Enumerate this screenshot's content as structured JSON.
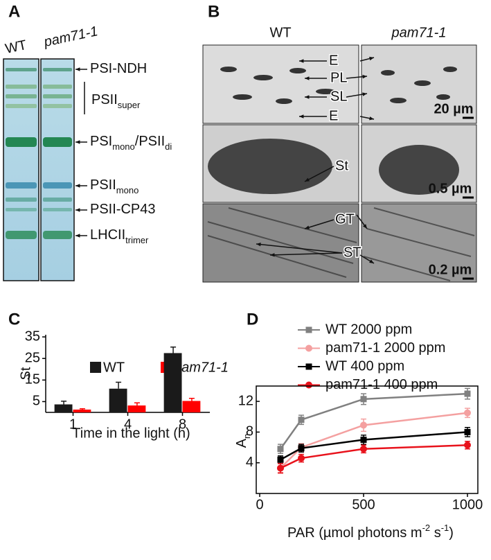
{
  "panel_a": {
    "letter": "A",
    "lanes": [
      "WT",
      "pam71-1"
    ],
    "bands": [
      [
        {
          "t": "PSI-NDH"
        }
      ],
      [
        {
          "t": "PSII"
        },
        {
          "t": "super",
          "sub": true
        }
      ],
      [
        {
          "t": "PSI"
        },
        {
          "t": "mono",
          "sub": true
        },
        {
          "t": "/PSII"
        },
        {
          "t": "di",
          "sub": true
        }
      ],
      [
        {
          "t": "PSII"
        },
        {
          "t": "mono",
          "sub": true
        }
      ],
      [
        {
          "t": "PSII-CP43"
        }
      ],
      [
        {
          "t": "LHCII"
        },
        {
          "t": "trimer",
          "sub": true
        }
      ]
    ]
  },
  "panel_b": {
    "letter": "B",
    "columns": [
      "WT",
      "pam71-1"
    ],
    "labels": [
      "E",
      "PL",
      "SL",
      "E",
      "St",
      "GT",
      "ST"
    ],
    "scale_bars": [
      "20 µm",
      "0.5 µm",
      "0.2 µm"
    ]
  },
  "chart_data": [
    {
      "type": "bar",
      "letter": "C",
      "y_label": "St",
      "x_label": "Time in the light (h)",
      "categories": [
        "1",
        "4",
        "8"
      ],
      "series": [
        {
          "name": "WT",
          "color": "#1a1a1a",
          "values": [
            3.7,
            11,
            27.5
          ],
          "errors": [
            1.5,
            3.0,
            2.8
          ]
        },
        {
          "name": "pam71-1",
          "color": "#ff0000",
          "values": [
            1.3,
            3.2,
            5.3
          ],
          "errors": [
            0.4,
            1.2,
            1.2
          ]
        }
      ],
      "ylim": [
        0,
        36
      ],
      "yticks": [
        5,
        15,
        25,
        35
      ]
    },
    {
      "type": "line",
      "letter": "D",
      "y_label": [
        {
          "t": "A"
        },
        {
          "t": "n",
          "sub": true
        }
      ],
      "x_label": [
        {
          "t": "PAR (µmol photons m"
        },
        {
          "t": "-2",
          "sup": true
        },
        {
          "t": " s"
        },
        {
          "t": "-1",
          "sup": true
        },
        {
          "t": ")"
        }
      ],
      "x": [
        100,
        200,
        500,
        1000
      ],
      "series": [
        {
          "name": "WT 2000 ppm",
          "color": "#808080",
          "marker": "square",
          "values": [
            5.8,
            9.6,
            12.3,
            13.0
          ],
          "errors": [
            0.6,
            0.6,
            0.7,
            0.7
          ]
        },
        {
          "name": "pam71-1 2000 ppm",
          "color": "#f4a0a0",
          "marker": "circle",
          "values": [
            3.3,
            6.0,
            8.9,
            10.5
          ],
          "errors": [
            0.7,
            0.5,
            0.8,
            0.6
          ]
        },
        {
          "name": "WT 400 ppm",
          "color": "#000000",
          "marker": "square",
          "values": [
            4.4,
            5.9,
            7.0,
            8.0
          ],
          "errors": [
            0.5,
            0.5,
            0.6,
            0.6
          ]
        },
        {
          "name": "pam71-1 400 ppm",
          "color": "#e8121b",
          "marker": "circle",
          "values": [
            3.3,
            4.6,
            5.8,
            6.3
          ],
          "errors": [
            0.6,
            0.5,
            0.5,
            0.5
          ]
        }
      ],
      "xlim": [
        0,
        1050
      ],
      "xticks": [
        0,
        500,
        1000
      ],
      "ylim": [
        0,
        14
      ],
      "yticks": [
        4,
        8,
        12
      ]
    }
  ]
}
